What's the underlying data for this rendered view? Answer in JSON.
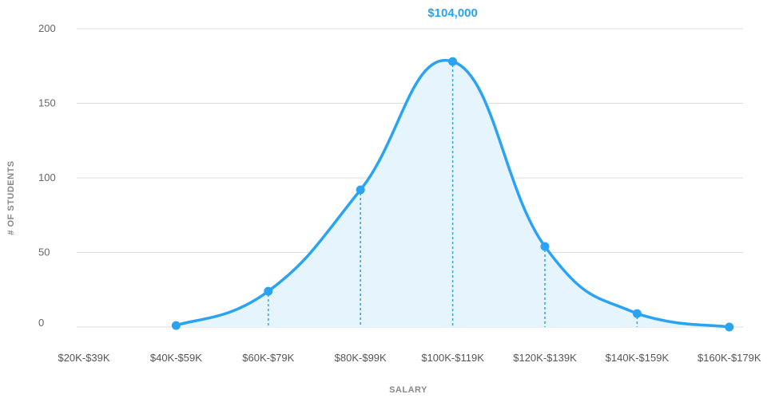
{
  "colors": {
    "accent": "#29a3f2",
    "fill": "#e6f4fd",
    "grid": "#dddddd",
    "text": "#666666"
  },
  "chart_data": {
    "type": "area",
    "title": "$104,000",
    "xlabel": "SALARY",
    "ylabel": "# OF STUDENTS",
    "ylim": [
      0,
      200
    ],
    "yticks": [
      0,
      50,
      100,
      150,
      200
    ],
    "grid": true,
    "categories": [
      "$20K-$39K",
      "$40K-$59K",
      "$60K-$79K",
      "$80K-$99K",
      "$100K-$119K",
      "$120K-$139K",
      "$140K-$159K",
      "$160K-$179K"
    ],
    "series": [
      {
        "points": [
          {
            "x": "$40K-$59K",
            "y": 1
          },
          {
            "x": "$60K-$79K",
            "y": 24
          },
          {
            "x": "$80K-$99K",
            "y": 92
          },
          {
            "x": "$100K-$119K",
            "y": 178
          },
          {
            "x": "$120K-$139K",
            "y": 54
          },
          {
            "x": "$140K-$159K",
            "y": 9
          },
          {
            "x": "$160K-$179K",
            "y": 0
          }
        ]
      }
    ]
  }
}
